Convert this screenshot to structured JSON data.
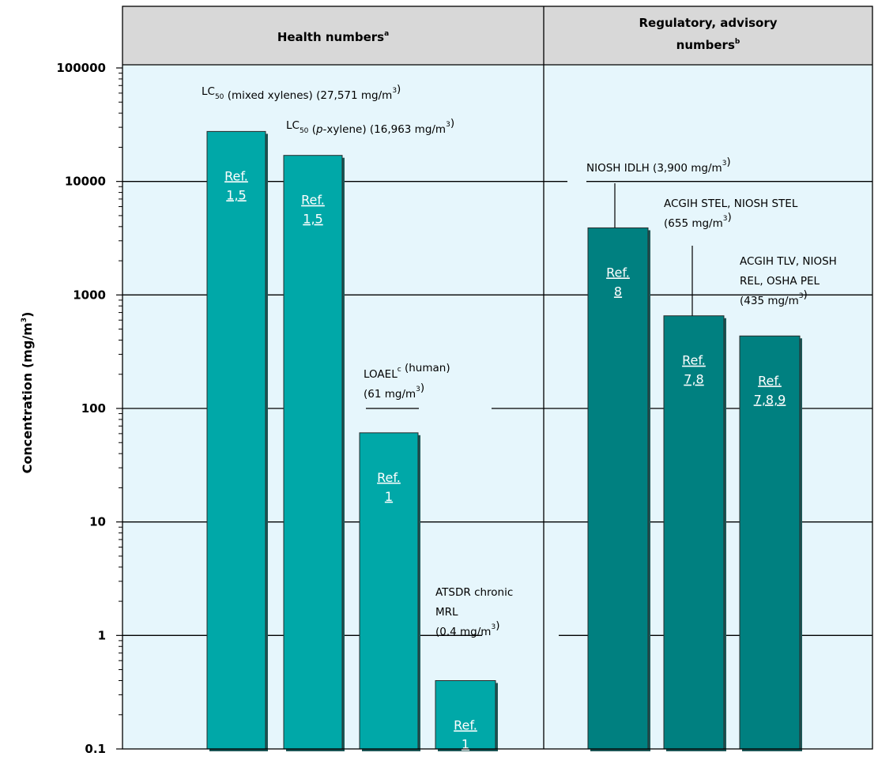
{
  "chart_data": {
    "type": "bar",
    "yscale": "log",
    "ylim": [
      0.1,
      100000
    ],
    "ylabel_main": "Concentration (mg/m",
    "ylabel_sup": "3",
    "ylabel_end": ")",
    "yticks": [
      "0.1",
      "1",
      "10",
      "100",
      "1000",
      "10000",
      "100000"
    ],
    "grid": true,
    "groups": [
      {
        "title": "Health numbers",
        "title_sup": "a"
      },
      {
        "title_line1": "Regulatory, advisory",
        "title_line2": "numbers",
        "title_sup": "b"
      }
    ],
    "bars": [
      {
        "group": 0,
        "value": 27571,
        "color": "#00a8a8",
        "label_lines": [
          [
            {
              "t": "LC"
            },
            {
              "t": "50",
              "sub": true
            },
            {
              "t": " (mixed xylenes) (27,571 mg/m"
            },
            {
              "t": "3",
              "sup": true
            },
            {
              "t": ")"
            }
          ]
        ],
        "ref": [
          "Ref.",
          "1,5"
        ]
      },
      {
        "group": 0,
        "value": 16963,
        "color": "#00a8a8",
        "label_lines": [
          [
            {
              "t": "LC"
            },
            {
              "t": "50",
              "sub": true
            },
            {
              "t": " ("
            },
            {
              "t": "p",
              "it": true
            },
            {
              "t": "-xylene) (16,963 mg/m"
            },
            {
              "t": "3",
              "sup": true
            },
            {
              "t": ")"
            }
          ]
        ],
        "ref": [
          "Ref.",
          "1,5"
        ]
      },
      {
        "group": 0,
        "value": 61,
        "color": "#00a8a8",
        "label_lines": [
          [
            {
              "t": "LOAEL"
            },
            {
              "t": "c",
              "sup": true
            },
            {
              "t": " (human)"
            }
          ],
          [
            {
              "t": "(61 mg/m"
            },
            {
              "t": "3",
              "sup": true
            },
            {
              "t": ")"
            }
          ]
        ],
        "ref": [
          "Ref.",
          "1"
        ]
      },
      {
        "group": 0,
        "value": 0.4,
        "color": "#00a8a8",
        "label_lines": [
          [
            {
              "t": "ATSDR chronic"
            }
          ],
          [
            {
              "t": "MRL"
            }
          ],
          [
            {
              "t": "(0.4 mg/m"
            },
            {
              "t": "3",
              "sup": true
            },
            {
              "t": ")"
            }
          ]
        ],
        "ref": [
          "Ref.",
          "1"
        ]
      },
      {
        "group": 1,
        "value": 3900,
        "color": "#008080",
        "label_lines": [
          [
            {
              "t": "NIOSH IDLH (3,900 mg/m"
            },
            {
              "t": "3",
              "sup": true
            },
            {
              "t": ")"
            }
          ]
        ],
        "ref": [
          "Ref.",
          "8"
        ]
      },
      {
        "group": 1,
        "value": 655,
        "color": "#008080",
        "label_lines": [
          [
            {
              "t": "ACGIH STEL, NIOSH STEL"
            }
          ],
          [
            {
              "t": "(655 mg/m"
            },
            {
              "t": "3",
              "sup": true
            },
            {
              "t": ")"
            }
          ]
        ],
        "ref": [
          "Ref.",
          "7,8"
        ]
      },
      {
        "group": 1,
        "value": 435,
        "color": "#008080",
        "label_lines": [
          [
            {
              "t": "ACGIH TLV, NIOSH"
            }
          ],
          [
            {
              "t": "REL, OSHA PEL"
            }
          ],
          [
            {
              "t": "(435 mg/m"
            },
            {
              "t": "3",
              "sup": true
            },
            {
              "t": ")"
            }
          ]
        ],
        "ref": [
          "Ref.",
          "7,8,9"
        ]
      }
    ]
  }
}
